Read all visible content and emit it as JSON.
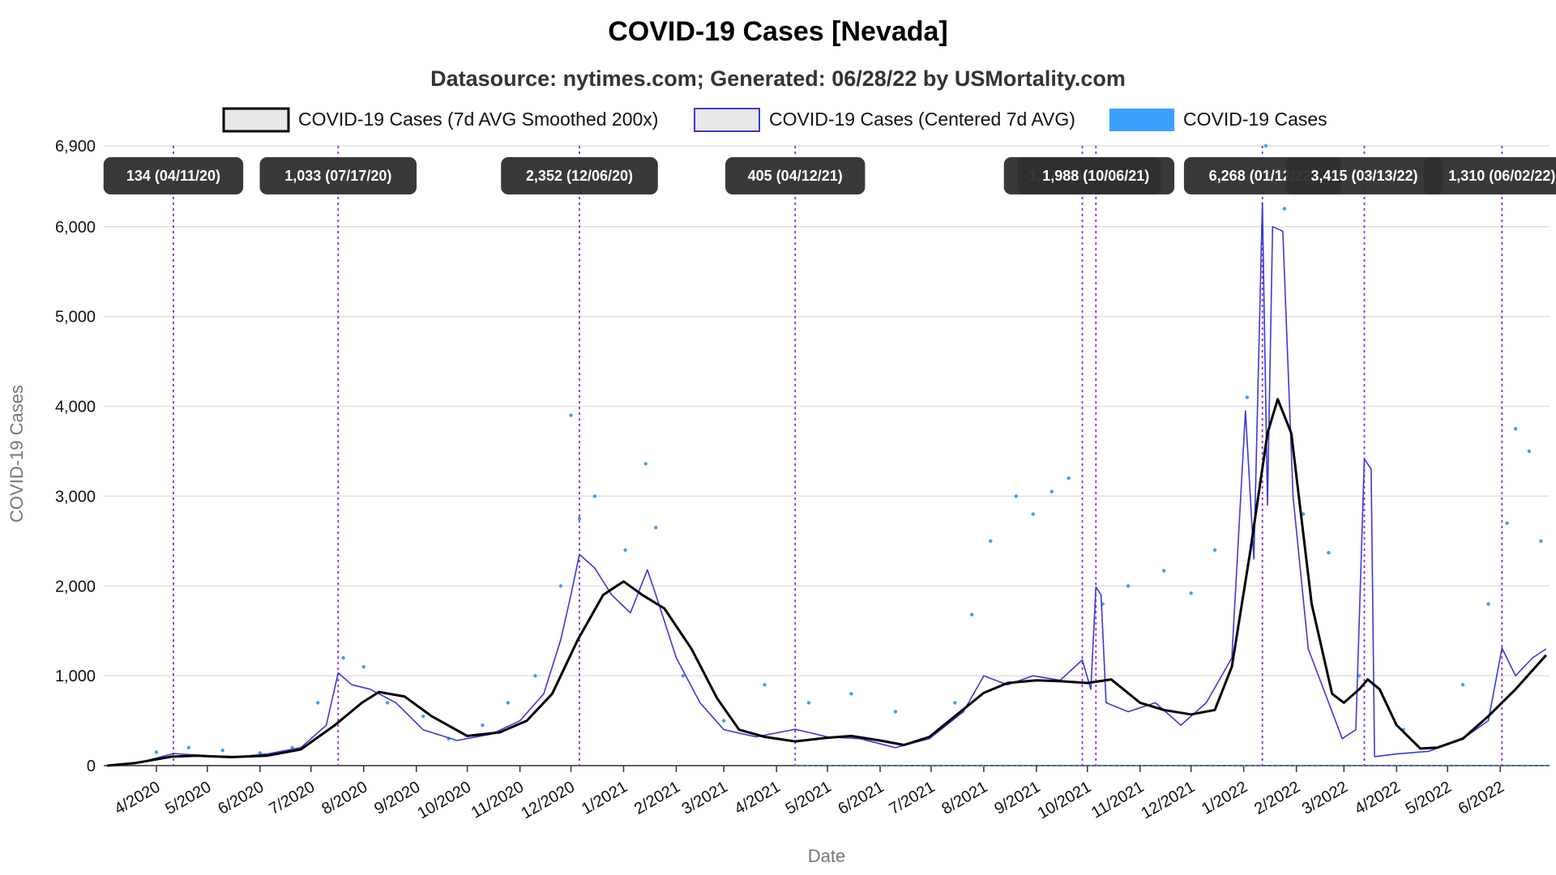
{
  "chart_data": {
    "type": "line",
    "title": "COVID-19 Cases [Nevada]",
    "subtitle": "Datasource: nytimes.com; Generated: 06/28/22 by USMortality.com",
    "xlabel": "Date",
    "ylabel": "COVID-19 Cases",
    "ylim": [
      0,
      6900
    ],
    "yticks": [
      {
        "value": 0,
        "label": "0"
      },
      {
        "value": 1000,
        "label": "1,000"
      },
      {
        "value": 2000,
        "label": "2,000"
      },
      {
        "value": 3000,
        "label": "3,000"
      },
      {
        "value": 4000,
        "label": "4,000"
      },
      {
        "value": 5000,
        "label": "5,000"
      },
      {
        "value": 6000,
        "label": "6,000"
      },
      {
        "value": 6900,
        "label": "6,900"
      }
    ],
    "xticks": [
      {
        "date": "2020-04-01",
        "label": "4/2020"
      },
      {
        "date": "2020-05-01",
        "label": "5/2020"
      },
      {
        "date": "2020-06-01",
        "label": "6/2020"
      },
      {
        "date": "2020-07-01",
        "label": "7/2020"
      },
      {
        "date": "2020-08-01",
        "label": "8/2020"
      },
      {
        "date": "2020-09-01",
        "label": "9/2020"
      },
      {
        "date": "2020-10-01",
        "label": "10/2020"
      },
      {
        "date": "2020-11-01",
        "label": "11/2020"
      },
      {
        "date": "2020-12-01",
        "label": "12/2020"
      },
      {
        "date": "2021-01-01",
        "label": "1/2021"
      },
      {
        "date": "2021-02-01",
        "label": "2/2021"
      },
      {
        "date": "2021-03-01",
        "label": "3/2021"
      },
      {
        "date": "2021-04-01",
        "label": "4/2021"
      },
      {
        "date": "2021-05-01",
        "label": "5/2021"
      },
      {
        "date": "2021-06-01",
        "label": "6/2021"
      },
      {
        "date": "2021-07-01",
        "label": "7/2021"
      },
      {
        "date": "2021-08-01",
        "label": "8/2021"
      },
      {
        "date": "2021-09-01",
        "label": "9/2021"
      },
      {
        "date": "2021-10-01",
        "label": "10/2021"
      },
      {
        "date": "2021-11-01",
        "label": "11/2021"
      },
      {
        "date": "2021-12-01",
        "label": "12/2021"
      },
      {
        "date": "2022-01-01",
        "label": "1/2022"
      },
      {
        "date": "2022-02-01",
        "label": "2/2022"
      },
      {
        "date": "2022-03-01",
        "label": "3/2022"
      },
      {
        "date": "2022-04-01",
        "label": "4/2022"
      },
      {
        "date": "2022-05-01",
        "label": "5/2022"
      },
      {
        "date": "2022-06-01",
        "label": "6/2022"
      }
    ],
    "grid": true,
    "legend_position": "top-center",
    "series": [
      {
        "name": "COVID-19 Cases (7d AVG Smoothed 200x)",
        "color": "#000000",
        "style": "line",
        "points": [
          [
            "2020-03-03",
            0
          ],
          [
            "2020-03-20",
            30
          ],
          [
            "2020-04-10",
            100
          ],
          [
            "2020-04-25",
            110
          ],
          [
            "2020-05-15",
            95
          ],
          [
            "2020-06-05",
            110
          ],
          [
            "2020-06-25",
            180
          ],
          [
            "2020-07-15",
            450
          ],
          [
            "2020-07-31",
            700
          ],
          [
            "2020-08-10",
            820
          ],
          [
            "2020-08-25",
            770
          ],
          [
            "2020-09-10",
            550
          ],
          [
            "2020-10-01",
            330
          ],
          [
            "2020-10-20",
            370
          ],
          [
            "2020-11-05",
            500
          ],
          [
            "2020-11-20",
            800
          ],
          [
            "2020-12-05",
            1400
          ],
          [
            "2020-12-20",
            1900
          ],
          [
            "2021-01-01",
            2050
          ],
          [
            "2021-01-12",
            1900
          ],
          [
            "2021-01-25",
            1750
          ],
          [
            "2021-02-10",
            1300
          ],
          [
            "2021-02-25",
            750
          ],
          [
            "2021-03-10",
            400
          ],
          [
            "2021-03-25",
            320
          ],
          [
            "2021-04-12",
            270
          ],
          [
            "2021-05-01",
            310
          ],
          [
            "2021-05-15",
            330
          ],
          [
            "2021-06-01",
            280
          ],
          [
            "2021-06-15",
            230
          ],
          [
            "2021-06-30",
            320
          ],
          [
            "2021-07-15",
            550
          ],
          [
            "2021-08-01",
            810
          ],
          [
            "2021-08-15",
            920
          ],
          [
            "2021-09-01",
            950
          ],
          [
            "2021-09-15",
            940
          ],
          [
            "2021-10-01",
            920
          ],
          [
            "2021-10-15",
            960
          ],
          [
            "2021-11-01",
            700
          ],
          [
            "2021-11-15",
            620
          ],
          [
            "2021-12-01",
            570
          ],
          [
            "2021-12-15",
            620
          ],
          [
            "2021-12-25",
            1100
          ],
          [
            "2022-01-05",
            2400
          ],
          [
            "2022-01-15",
            3700
          ],
          [
            "2022-01-21",
            4080
          ],
          [
            "2022-01-29",
            3700
          ],
          [
            "2022-02-10",
            1800
          ],
          [
            "2022-02-22",
            800
          ],
          [
            "2022-03-01",
            700
          ],
          [
            "2022-03-10",
            850
          ],
          [
            "2022-03-15",
            960
          ],
          [
            "2022-03-22",
            850
          ],
          [
            "2022-04-01",
            450
          ],
          [
            "2022-04-15",
            190
          ],
          [
            "2022-04-25",
            200
          ],
          [
            "2022-05-10",
            300
          ],
          [
            "2022-05-25",
            550
          ],
          [
            "2022-06-10",
            850
          ],
          [
            "2022-06-28",
            1230
          ]
        ]
      },
      {
        "name": "COVID-19 Cases (Centered 7d AVG)",
        "color": "#3a3ad6",
        "style": "line",
        "points": [
          [
            "2020-03-05",
            0
          ],
          [
            "2020-03-25",
            50
          ],
          [
            "2020-04-11",
            134
          ],
          [
            "2020-05-01",
            110
          ],
          [
            "2020-05-20",
            100
          ],
          [
            "2020-06-05",
            130
          ],
          [
            "2020-06-25",
            200
          ],
          [
            "2020-07-10",
            450
          ],
          [
            "2020-07-17",
            1033
          ],
          [
            "2020-07-25",
            900
          ],
          [
            "2020-08-05",
            850
          ],
          [
            "2020-08-20",
            700
          ],
          [
            "2020-09-05",
            400
          ],
          [
            "2020-09-25",
            280
          ],
          [
            "2020-10-15",
            350
          ],
          [
            "2020-11-01",
            500
          ],
          [
            "2020-11-15",
            800
          ],
          [
            "2020-11-25",
            1400
          ],
          [
            "2020-12-01",
            1900
          ],
          [
            "2020-12-06",
            2352
          ],
          [
            "2020-12-15",
            2200
          ],
          [
            "2020-12-25",
            1900
          ],
          [
            "2021-01-05",
            1700
          ],
          [
            "2021-01-15",
            2180
          ],
          [
            "2021-01-20",
            1900
          ],
          [
            "2021-02-01",
            1200
          ],
          [
            "2021-02-15",
            700
          ],
          [
            "2021-03-01",
            400
          ],
          [
            "2021-03-20",
            320
          ],
          [
            "2021-04-12",
            405
          ],
          [
            "2021-05-01",
            320
          ],
          [
            "2021-05-20",
            300
          ],
          [
            "2021-06-10",
            200
          ],
          [
            "2021-06-30",
            300
          ],
          [
            "2021-07-20",
            600
          ],
          [
            "2021-08-01",
            1000
          ],
          [
            "2021-08-15",
            900
          ],
          [
            "2021-08-30",
            1000
          ],
          [
            "2021-09-15",
            950
          ],
          [
            "2021-09-28",
            1177
          ],
          [
            "2021-10-03",
            850
          ],
          [
            "2021-10-06",
            1988
          ],
          [
            "2021-10-09",
            1900
          ],
          [
            "2021-10-12",
            700
          ],
          [
            "2021-10-25",
            600
          ],
          [
            "2021-11-10",
            700
          ],
          [
            "2021-11-25",
            450
          ],
          [
            "2021-12-10",
            700
          ],
          [
            "2021-12-25",
            1200
          ],
          [
            "2022-01-02",
            3950
          ],
          [
            "2022-01-07",
            2300
          ],
          [
            "2022-01-12",
            6268
          ],
          [
            "2022-01-15",
            2900
          ],
          [
            "2022-01-18",
            6000
          ],
          [
            "2022-01-24",
            5950
          ],
          [
            "2022-01-30",
            3000
          ],
          [
            "2022-02-08",
            1300
          ],
          [
            "2022-02-20",
            700
          ],
          [
            "2022-02-28",
            300
          ],
          [
            "2022-03-08",
            400
          ],
          [
            "2022-03-13",
            3415
          ],
          [
            "2022-03-17",
            3300
          ],
          [
            "2022-03-19",
            100
          ],
          [
            "2022-04-01",
            130
          ],
          [
            "2022-04-20",
            160
          ],
          [
            "2022-05-10",
            300
          ],
          [
            "2022-05-25",
            500
          ],
          [
            "2022-06-02",
            1310
          ],
          [
            "2022-06-10",
            1000
          ],
          [
            "2022-06-20",
            1200
          ],
          [
            "2022-06-28",
            1300
          ]
        ]
      },
      {
        "name": "COVID-19 Cases",
        "color": "#3aa0ff",
        "style": "points",
        "points": [
          [
            "2020-04-01",
            150
          ],
          [
            "2020-04-20",
            200
          ],
          [
            "2020-05-10",
            170
          ],
          [
            "2020-06-01",
            140
          ],
          [
            "2020-06-20",
            200
          ],
          [
            "2020-07-05",
            700
          ],
          [
            "2020-07-20",
            1200
          ],
          [
            "2020-08-01",
            1100
          ],
          [
            "2020-08-15",
            700
          ],
          [
            "2020-09-05",
            550
          ],
          [
            "2020-09-20",
            300
          ],
          [
            "2020-10-10",
            450
          ],
          [
            "2020-10-25",
            700
          ],
          [
            "2020-11-10",
            1000
          ],
          [
            "2020-11-25",
            2000
          ],
          [
            "2020-12-01",
            3900
          ],
          [
            "2020-12-06",
            2750
          ],
          [
            "2020-12-15",
            3000
          ],
          [
            "2021-01-02",
            2400
          ],
          [
            "2021-01-14",
            3360
          ],
          [
            "2021-01-20",
            2650
          ],
          [
            "2021-02-05",
            1000
          ],
          [
            "2021-03-01",
            500
          ],
          [
            "2021-03-25",
            900
          ],
          [
            "2021-04-20",
            700
          ],
          [
            "2021-05-15",
            800
          ],
          [
            "2021-06-10",
            600
          ],
          [
            "2021-07-15",
            700
          ],
          [
            "2021-07-25",
            1680
          ],
          [
            "2021-08-05",
            2500
          ],
          [
            "2021-08-20",
            3000
          ],
          [
            "2021-08-30",
            2800
          ],
          [
            "2021-09-10",
            3050
          ],
          [
            "2021-09-20",
            3200
          ],
          [
            "2021-10-10",
            1800
          ],
          [
            "2021-10-25",
            2000
          ],
          [
            "2021-11-15",
            2170
          ],
          [
            "2021-12-01",
            1920
          ],
          [
            "2021-12-15",
            2400
          ],
          [
            "2022-01-03",
            4100
          ],
          [
            "2022-01-14",
            6900
          ],
          [
            "2022-01-25",
            6200
          ],
          [
            "2022-02-05",
            2800
          ],
          [
            "2022-02-20",
            2370
          ],
          [
            "2022-03-10",
            1000
          ],
          [
            "2022-04-05",
            400
          ],
          [
            "2022-05-10",
            900
          ],
          [
            "2022-05-25",
            1800
          ],
          [
            "2022-06-05",
            2700
          ],
          [
            "2022-06-10",
            3750
          ],
          [
            "2022-06-18",
            3500
          ],
          [
            "2022-06-25",
            2500
          ]
        ]
      }
    ],
    "annotations": [
      {
        "date": "2020-04-11",
        "label": "134 (04/11/20)"
      },
      {
        "date": "2020-07-17",
        "label": "1,033 (07/17/20)"
      },
      {
        "date": "2020-12-06",
        "label": "2,352 (12/06/20)"
      },
      {
        "date": "2021-04-12",
        "label": "405 (04/12/21)"
      },
      {
        "date": "2021-09-28",
        "label": "1,177 (09/28/21)"
      },
      {
        "date": "2021-10-06",
        "label": "1,988 (10/06/21)"
      },
      {
        "date": "2022-01-12",
        "label": "6,268 (01/12/22)"
      },
      {
        "date": "2022-03-13",
        "label": "3,415 (03/13/22)"
      },
      {
        "date": "2022-06-02",
        "label": "1,310 (06/02/22)"
      }
    ]
  }
}
